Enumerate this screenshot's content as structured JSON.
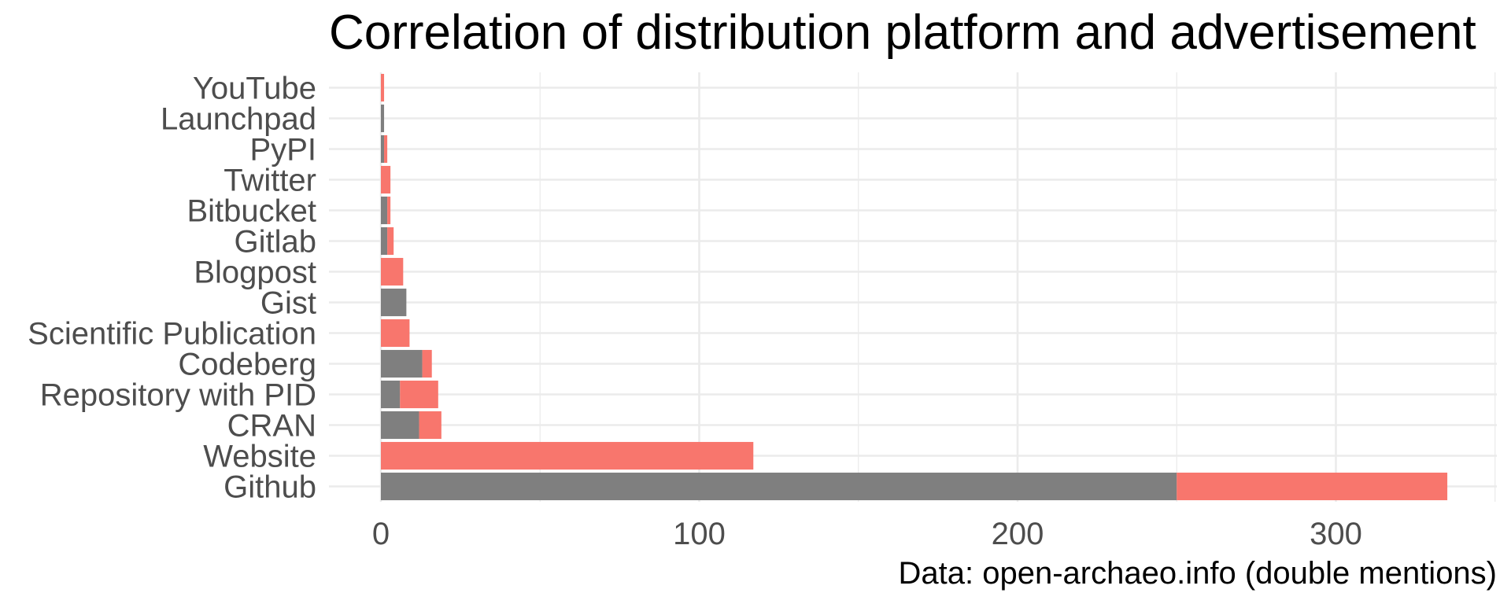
{
  "chart_data": {
    "type": "bar",
    "orientation": "horizontal",
    "stacked": true,
    "title": "Correlation of distribution platform and advertisement",
    "caption": "Data: open-archaeo.info (double mentions)",
    "xlabel": "",
    "ylabel": "",
    "xlim": [
      -16,
      350
    ],
    "x_ticks": [
      0,
      100,
      200,
      300
    ],
    "categories": [
      "YouTube",
      "Launchpad",
      "PyPI",
      "Twitter",
      "Bitbucket",
      "Gitlab",
      "Blogpost",
      "Gist",
      "Scientific Publication",
      "Codeberg",
      "Repository with PID",
      "CRAN",
      "Website",
      "Github"
    ],
    "series": [
      {
        "color": "#7f7f7f",
        "values": [
          0,
          1,
          1,
          0,
          2,
          2,
          0,
          8,
          0,
          13,
          6,
          12,
          0,
          250
        ]
      },
      {
        "color": "#f8766d",
        "values": [
          1,
          0,
          1,
          3,
          1,
          2,
          7,
          0,
          9,
          3,
          12,
          7,
          117,
          85
        ]
      }
    ],
    "grid": true,
    "legend": "none"
  }
}
